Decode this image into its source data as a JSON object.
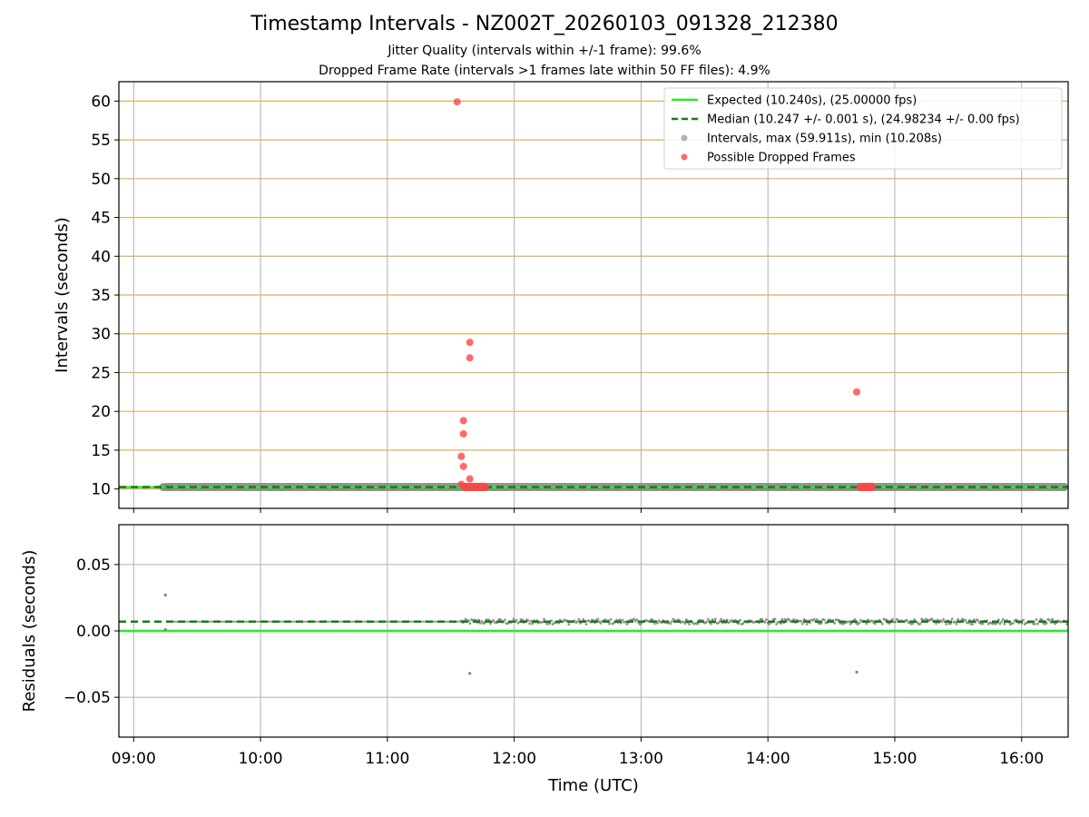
{
  "title": "Timestamp Intervals - NZ002T_20260103_091328_212380",
  "subtitle_jitter": "Jitter Quality (intervals within +/-1 frame): 99.6%",
  "subtitle_dropped": "Dropped Frame Rate (intervals >1 frames late within 50 FF files): 4.9%",
  "colors": {
    "expected": "#22ee22",
    "median": "#1a7a1a",
    "intervals": "#808080",
    "dropped": "#ff4444",
    "hgrid_top": "#d8b25f",
    "grid": "#b0b0b0"
  },
  "chart_data": [
    {
      "type": "scatter",
      "id": "intervals",
      "ylabel": "Intervals (seconds)",
      "ylim": [
        7.5,
        62.5
      ],
      "yticks": [
        10,
        15,
        20,
        25,
        30,
        35,
        40,
        45,
        50,
        55,
        60
      ],
      "xlim": [
        "08:53",
        "16:22"
      ],
      "grid": true,
      "legend_position": "upper right",
      "legend": [
        {
          "key": "expected",
          "label": "Expected (10.240s), (25.00000 fps)"
        },
        {
          "key": "median",
          "label": "Median (10.247 +/- 0.001 s), (24.98234 +/- 0.00 fps)"
        },
        {
          "key": "intervals",
          "label": "Intervals, max (59.911s), min (10.208s)"
        },
        {
          "key": "dropped",
          "label": "Possible Dropped Frames"
        }
      ],
      "expected_value": 10.24,
      "median_value": 10.247,
      "intervals_band": {
        "x_start": "09:14",
        "x_end": "16:22",
        "y": 10.247
      },
      "dropped_clusters": [
        {
          "x_start": "11:35",
          "x_end": "11:48",
          "y": 10.25
        },
        {
          "x_start": "14:42",
          "x_end": "14:51",
          "y": 10.25
        }
      ],
      "dropped_points": [
        {
          "x": "11:33",
          "y": 59.9
        },
        {
          "x": "11:36",
          "y": 18.8
        },
        {
          "x": "11:36",
          "y": 17.1
        },
        {
          "x": "11:35",
          "y": 14.2
        },
        {
          "x": "11:36",
          "y": 12.9
        },
        {
          "x": "11:39",
          "y": 11.3
        },
        {
          "x": "11:39",
          "y": 28.9
        },
        {
          "x": "11:39",
          "y": 26.9
        },
        {
          "x": "11:35",
          "y": 10.6
        },
        {
          "x": "14:42",
          "y": 22.5
        }
      ]
    },
    {
      "type": "scatter",
      "id": "residuals",
      "xlabel": "Time (UTC)",
      "ylabel": "Residuals (seconds)",
      "ylim": [
        -0.08,
        0.08
      ],
      "yticks": [
        0.05,
        0.0,
        -0.05
      ],
      "ytick_labels": [
        "0.05",
        "0.00",
        "−0.05"
      ],
      "xticks": [
        "09:00",
        "10:00",
        "11:00",
        "12:00",
        "13:00",
        "14:00",
        "15:00",
        "16:00"
      ],
      "xlim": [
        "08:53",
        "16:22"
      ],
      "grid": true,
      "expected_residual": 0.0,
      "median_residual": 0.007,
      "sparse_segment": {
        "x_start": "09:16",
        "x_end": "11:35",
        "y": 0.007
      },
      "dense_segment": {
        "x_start": "11:35",
        "x_end": "16:22",
        "y": 0.007,
        "spread": 0.004
      },
      "outliers": [
        {
          "x": "09:15",
          "y": 0.027
        },
        {
          "x": "09:15",
          "y": 0.001
        },
        {
          "x": "11:39",
          "y": -0.032
        },
        {
          "x": "14:42",
          "y": -0.031
        }
      ]
    }
  ]
}
